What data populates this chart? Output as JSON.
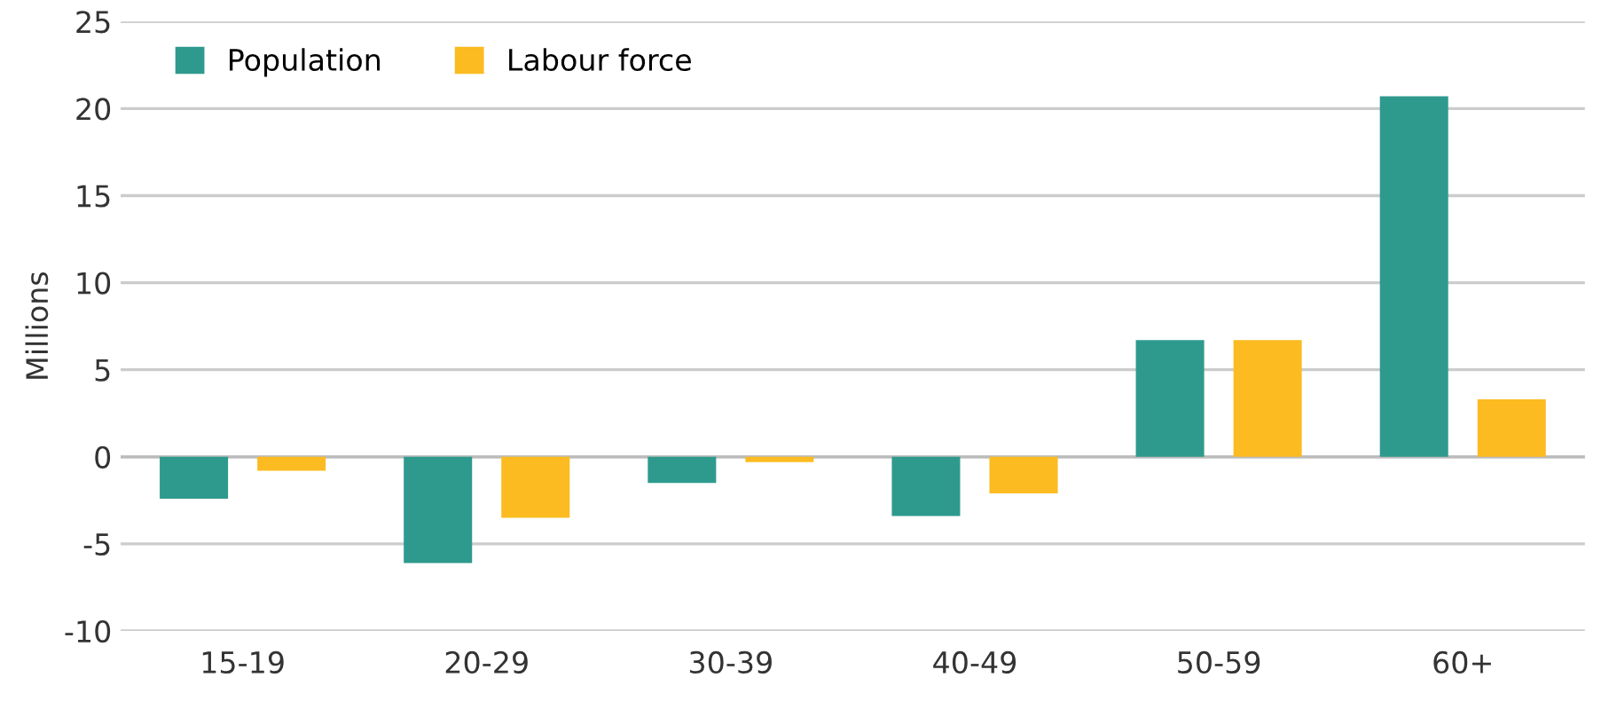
{
  "chart_data": {
    "type": "bar",
    "ylabel": "Millions",
    "categories": [
      "15-19",
      "20-29",
      "30-39",
      "40-49",
      "50-59",
      "60+"
    ],
    "series": [
      {
        "name": "Population",
        "color": "#2e9a8d",
        "values": [
          -2.4,
          -6.1,
          -1.5,
          -3.4,
          6.7,
          20.7
        ]
      },
      {
        "name": "Labour force",
        "color": "#fbbb21",
        "values": [
          -0.8,
          -3.5,
          -0.3,
          -2.1,
          6.7,
          3.3
        ]
      }
    ],
    "ylim": [
      -10,
      25
    ],
    "yticks": [
      -10,
      -5,
      0,
      5,
      10,
      15,
      20,
      25
    ],
    "grid": "y",
    "legend": "top left"
  }
}
